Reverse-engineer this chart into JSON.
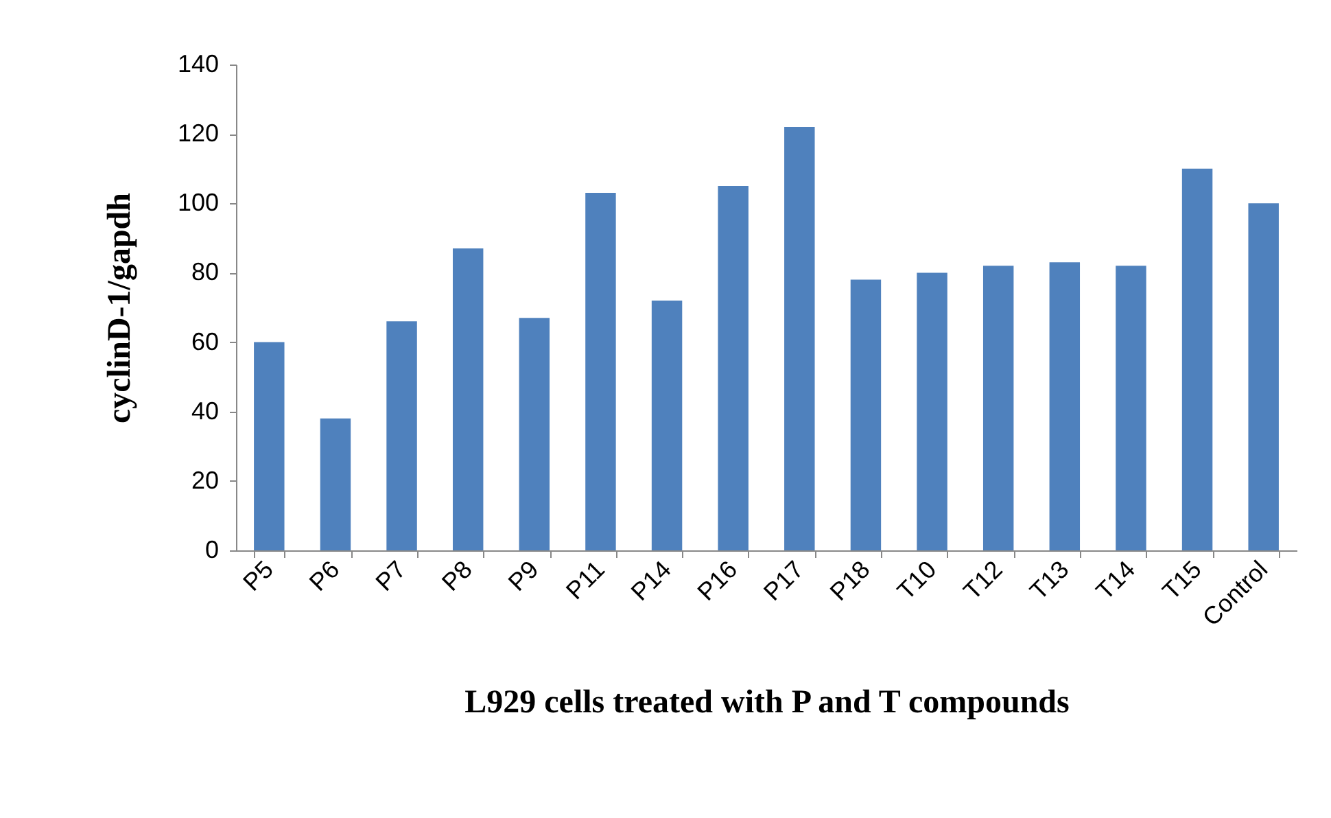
{
  "chart_data": {
    "type": "bar",
    "xlabel": "L929 cells treated with P and T compounds",
    "ylabel": "cyclinD-1/gapdh",
    "categories": [
      "P5",
      "P6",
      "P7",
      "P8",
      "P9",
      "P11",
      "P14",
      "P16",
      "P17",
      "P18",
      "T10",
      "T12",
      "T13",
      "T14",
      "T15",
      "Control"
    ],
    "values": [
      60,
      38,
      66,
      87,
      67,
      103,
      72,
      105,
      122,
      78,
      80,
      82,
      83,
      82,
      110,
      100
    ],
    "color": "#4f81bd",
    "ylim": [
      0,
      140
    ],
    "yticks": [
      0,
      20,
      40,
      60,
      80,
      100,
      120,
      140
    ],
    "grid": false
  }
}
